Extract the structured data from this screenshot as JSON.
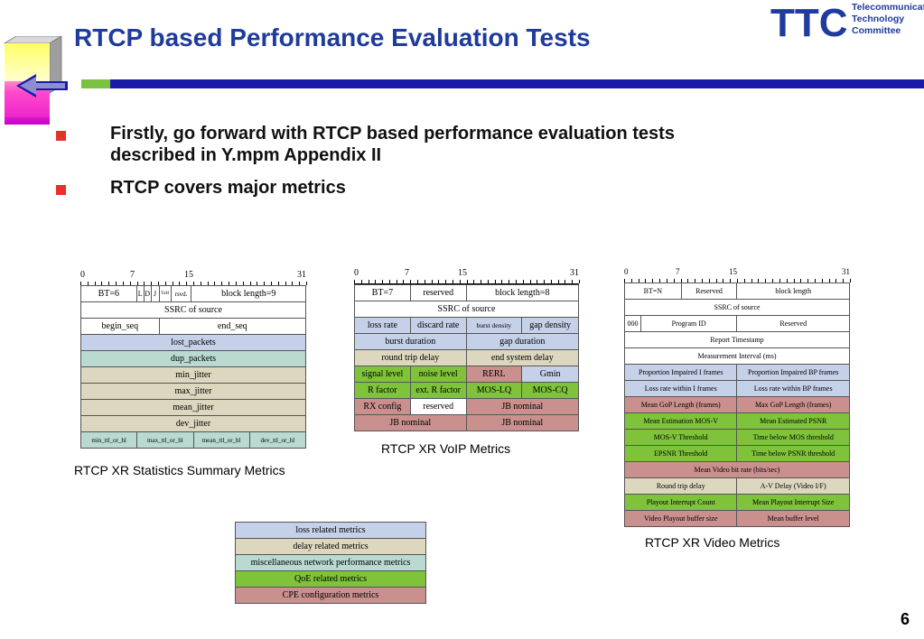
{
  "slide": {
    "title": "RTCP based Performance Evaluation Tests",
    "bullets": [
      "Firstly, go forward with RTCP based performance evaluation tests",
      "described in Y.mpm Appendix II",
      "RTCP covers major metrics"
    ],
    "page_number": "6"
  },
  "logo": {
    "mark": "TTC",
    "lines": [
      "Telecommunication",
      "Technology",
      "Committee"
    ],
    "color": "#1f3b9b"
  },
  "colors": {
    "title": "#1f3b9b",
    "bullet": "#e8302a",
    "loss": "#c5d1e8",
    "delay": "#ddd7bf",
    "misc": "#b9d9d1",
    "qoe": "#7ec33a",
    "cpe": "#c9908e"
  },
  "ruler_labels": [
    "0",
    "7",
    "15",
    "31"
  ],
  "stats_table": {
    "caption": "RTCP XR Statistics Summary Metrics",
    "row1": [
      "BT=6",
      "L",
      "D",
      "J",
      "ToH",
      "rsvd.",
      "block length=9"
    ],
    "rows": [
      "SSRC of source",
      "lost_packets",
      "dup_packets",
      "min_jitter",
      "max_jitter",
      "mean_jitter",
      "dev_jitter"
    ],
    "seq": [
      "begin_seq",
      "end_seq"
    ],
    "ttl": [
      "min_ttl_or_hl",
      "max_ttl_or_hl",
      "mean_ttl_or_hl",
      "dev_ttl_or_hl"
    ]
  },
  "voip_table": {
    "caption": "RTCP XR VoIP Metrics",
    "row1": [
      "BT=7",
      "reserved",
      "block length=8"
    ],
    "ssrc": "SSRC of source",
    "row3": [
      "loss rate",
      "discard rate",
      "burst density",
      "gap density"
    ],
    "row4": [
      "burst duration",
      "gap duration"
    ],
    "row5": [
      "round trip delay",
      "end system delay"
    ],
    "row6": [
      "signal level",
      "noise level",
      "RERL",
      "Gmin"
    ],
    "row7": [
      "R factor",
      "ext. R factor",
      "MOS-LQ",
      "MOS-CQ"
    ],
    "row8": [
      "RX config",
      "reserved",
      "JB nominal"
    ],
    "row9": [
      "JB nominal",
      "JB nominal"
    ]
  },
  "video_table": {
    "caption": "RTCP XR Video Metrics",
    "row1": [
      "BT=N",
      "Reserved",
      "block length"
    ],
    "ssrc": "SSRC of source",
    "row3": [
      "000",
      "Program ID",
      "Reserved"
    ],
    "report_ts": "Report Timestamp",
    "interval": "Measurement Interval (ms)",
    "pairs": [
      [
        "Proportion Impaired I frames",
        "Proportion Impaired BP frames"
      ],
      [
        "Loss rate within I frames",
        "Loss rate within BP frames"
      ],
      [
        "Mean GoP Length (frames)",
        "Max GoP Length (frames)"
      ],
      [
        "Mean Estimation MOS-V",
        "Mean Estimated PSNR"
      ],
      [
        "MOS-V Threshold",
        "Time below MOS threshold"
      ],
      [
        "EPSNR Threshold",
        "Time below PSNR threshold"
      ]
    ],
    "bitrate": "Mean Video bit rate (bits/sec)",
    "pairs2": [
      [
        "Round trip delay",
        "A-V Delay (Video I/F)"
      ],
      [
        "Playout Interrupt Count",
        "Mean Playout Interrupt Size"
      ],
      [
        "Video Playout buffer size",
        "Mean buffer level"
      ]
    ]
  },
  "legend": [
    "loss related metrics",
    "delay related metrics",
    "miscellaneous network performance metrics",
    "QoE related metrics",
    "CPE configuration metrics"
  ]
}
